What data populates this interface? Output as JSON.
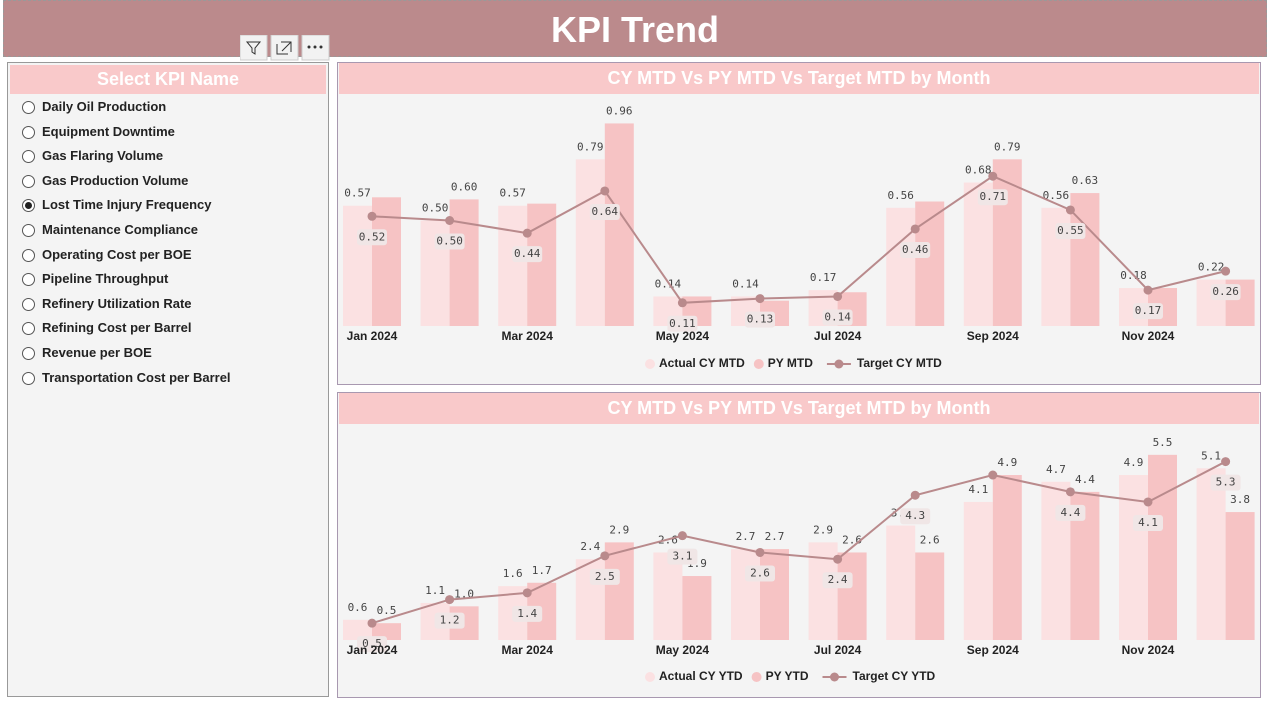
{
  "header": {
    "title": "KPI Trend"
  },
  "slicer": {
    "title": "Select KPI Name",
    "items": [
      "Daily Oil Production",
      "Equipment Downtime",
      "Gas Flaring Volume",
      "Gas Production Volume",
      "Lost Time Injury Frequency",
      "Maintenance Compliance",
      "Operating Cost per BOE",
      "Pipeline Throughput",
      "Refinery Utilization Rate",
      "Refining Cost per Barrel",
      "Revenue per BOE",
      "Transportation Cost per Barrel"
    ],
    "selected": 4
  },
  "chart_data": [
    {
      "type": "combo",
      "title": "CY MTD Vs PY MTD Vs Target MTD by Month",
      "categories": [
        "Jan 2024",
        null,
        "Mar 2024",
        null,
        "May 2024",
        null,
        "Jul 2024",
        null,
        "Sep 2024",
        null,
        "Nov 2024",
        null
      ],
      "ylim": [
        0,
        1
      ],
      "series": [
        {
          "name": "Actual CY MTD",
          "type": "bar",
          "color": "#fbe1e2",
          "values": [
            0.57,
            0.5,
            0.57,
            0.79,
            0.14,
            0.14,
            0.17,
            0.56,
            0.68,
            0.56,
            0.18,
            0.22
          ],
          "value_labels": [
            "0.57",
            "0.50",
            "0.57",
            "0.79",
            "0.14",
            "0.14",
            "0.17",
            "0.56",
            "0.68",
            "0.56",
            "0.18",
            "0.22"
          ]
        },
        {
          "name": "PY MTD",
          "type": "bar",
          "color": "#f6c3c4",
          "values": [
            0.61,
            0.6,
            0.58,
            0.96,
            0.14,
            0.12,
            0.16,
            0.59,
            0.79,
            0.63,
            0.18,
            0.22
          ],
          "value_labels": [
            null,
            "0.60",
            null,
            "0.96",
            null,
            null,
            null,
            null,
            "0.79",
            "0.63",
            null,
            null
          ]
        },
        {
          "name": "Target CY MTD",
          "type": "line",
          "color": "#b98a8c",
          "values": [
            0.52,
            0.5,
            0.44,
            0.64,
            0.11,
            0.13,
            0.14,
            0.46,
            0.71,
            0.55,
            0.17,
            0.26
          ],
          "value_labels": [
            "0.52",
            "0.50",
            "0.44",
            "0.64",
            "0.11",
            "0.13",
            "0.14",
            "0.46",
            "0.71",
            "0.55",
            "0.17",
            "0.26"
          ]
        }
      ]
    },
    {
      "type": "combo",
      "title": "CY MTD Vs PY MTD Vs Target MTD by Month",
      "categories": [
        "Jan 2024",
        null,
        "Mar 2024",
        null,
        "May 2024",
        null,
        "Jul 2024",
        null,
        "Sep 2024",
        null,
        "Nov 2024",
        null
      ],
      "ylim": [
        0,
        6
      ],
      "series": [
        {
          "name": "Actual CY YTD",
          "type": "bar",
          "color": "#fbe1e2",
          "values": [
            0.6,
            1.1,
            1.6,
            2.4,
            2.6,
            2.7,
            2.9,
            3.4,
            4.1,
            4.7,
            4.9,
            5.1
          ],
          "value_labels": [
            "0.6",
            "1.1",
            "1.6",
            "2.4",
            "2.6",
            "2.7",
            "2.9",
            "3.4",
            "4.1",
            "4.7",
            "4.9",
            "5.1"
          ]
        },
        {
          "name": "PY YTD",
          "type": "bar",
          "color": "#f6c3c4",
          "values": [
            0.5,
            1.0,
            1.7,
            2.9,
            1.9,
            2.7,
            2.6,
            2.6,
            4.9,
            4.4,
            5.5,
            3.8
          ],
          "value_labels": [
            "0.5",
            "1.0",
            "1.7",
            "2.9",
            "1.9",
            "2.7",
            "2.6",
            "2.6",
            "4.9",
            "4.4",
            "5.5",
            "3.8"
          ]
        },
        {
          "name": "Target CY YTD",
          "type": "line",
          "color": "#b98a8c",
          "values": [
            0.5,
            1.2,
            1.4,
            2.5,
            3.1,
            2.6,
            2.4,
            4.3,
            4.9,
            4.4,
            4.1,
            5.3
          ],
          "value_labels": [
            "0.5",
            "1.2",
            "1.4",
            "2.5",
            "3.1",
            "2.6",
            "2.4",
            "4.3",
            null,
            "4.4",
            "4.1",
            "5.3"
          ]
        }
      ]
    }
  ]
}
